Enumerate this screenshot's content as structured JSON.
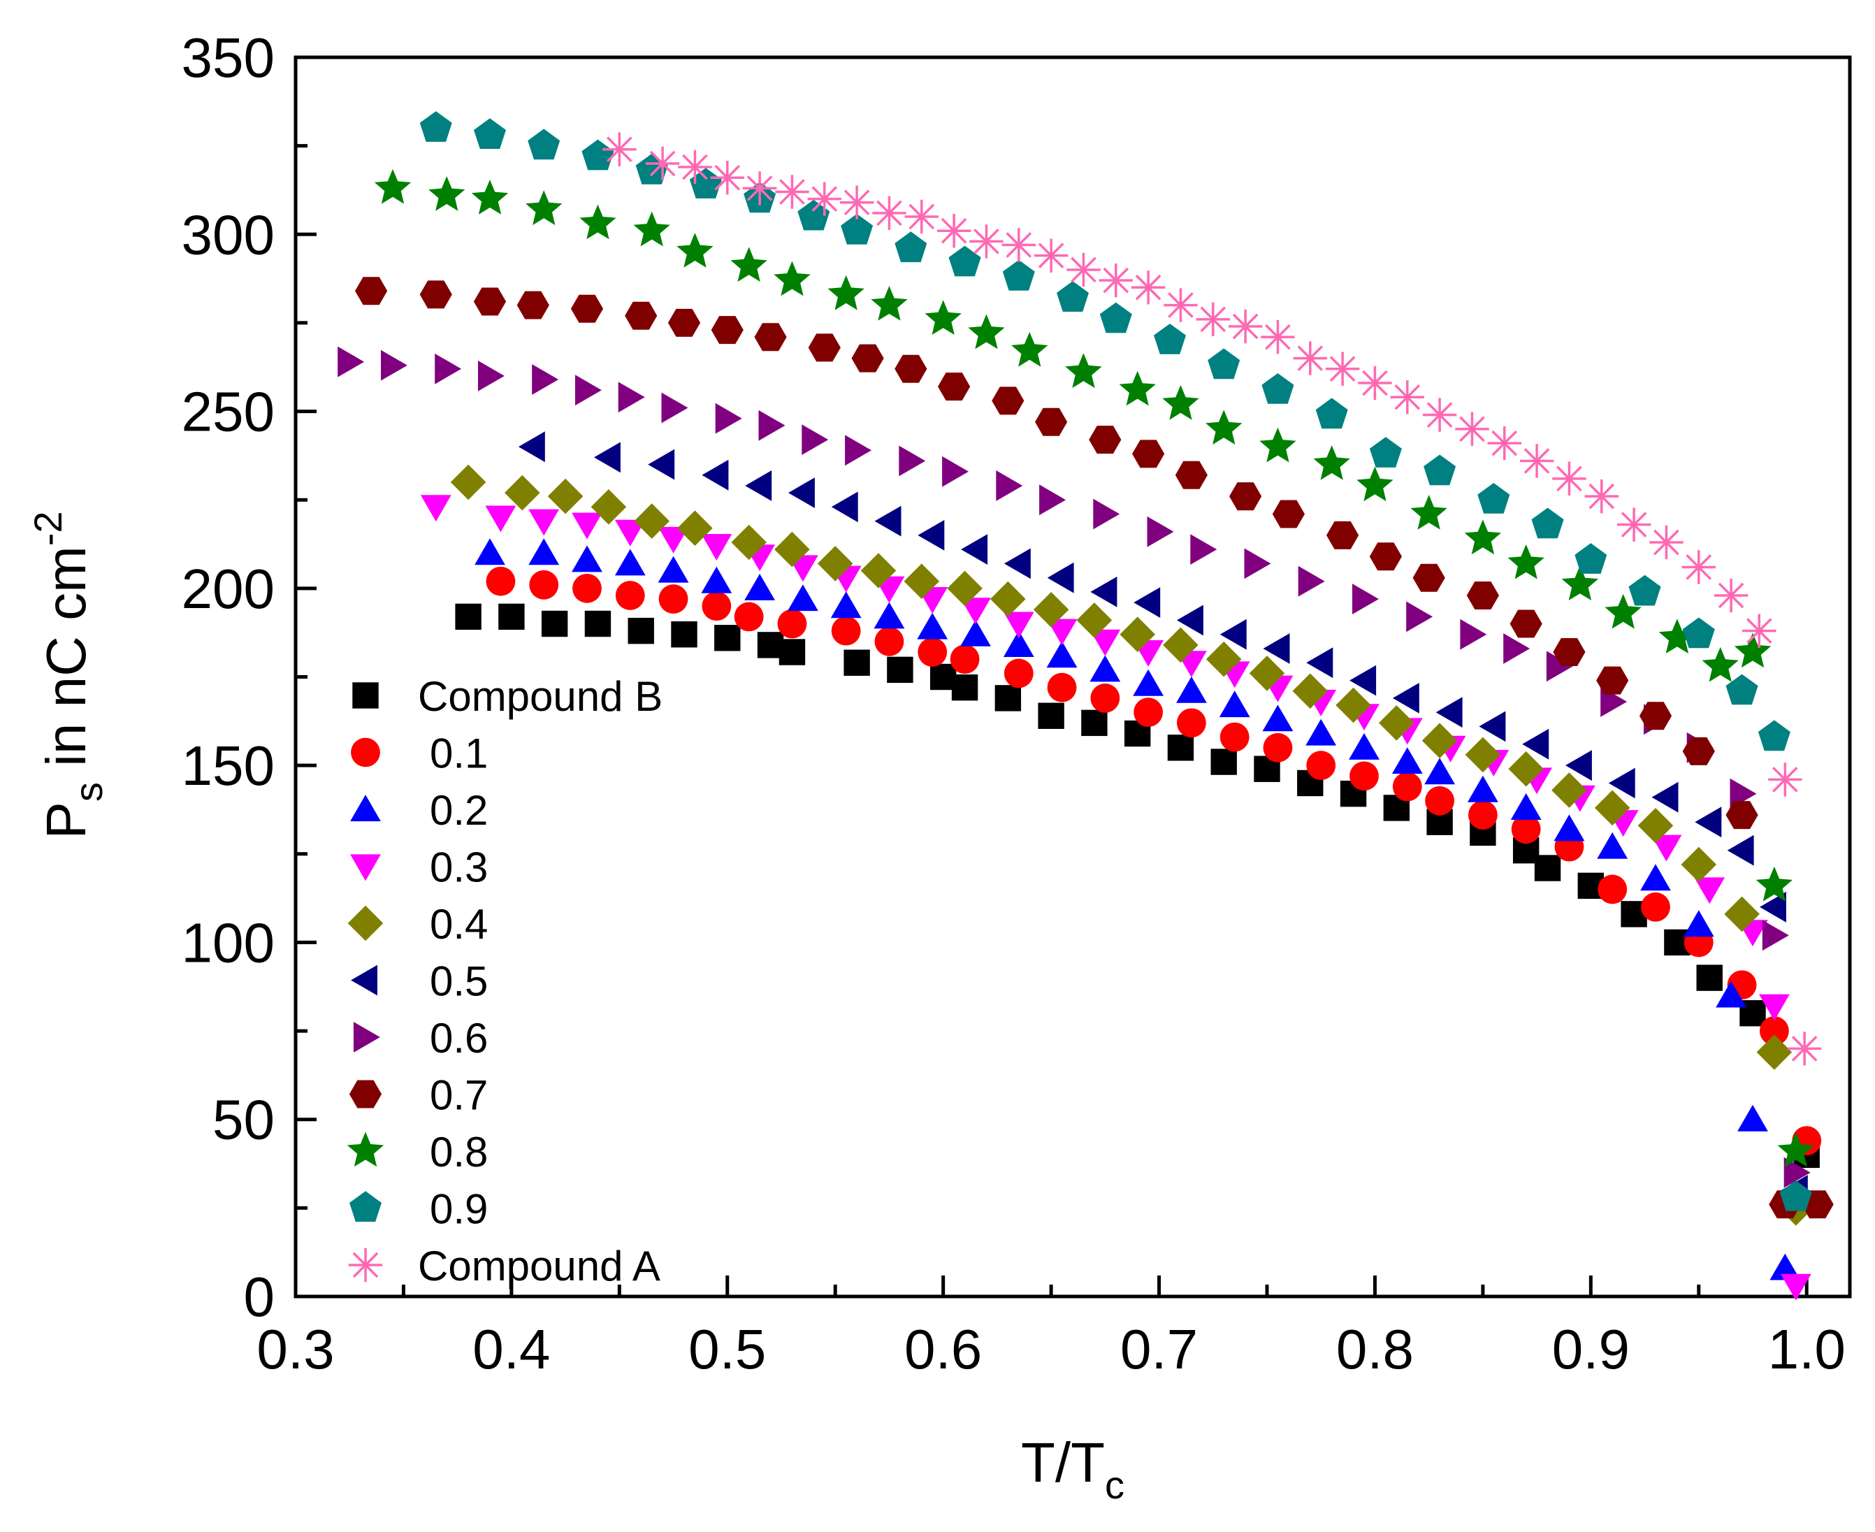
{
  "chart_data": {
    "type": "scatter",
    "title": "",
    "xlabel": {
      "main": "T/T",
      "sub": "c"
    },
    "ylabel": {
      "main": "P",
      "sub": "s",
      "rest": " in nC cm",
      "sup": "-2"
    },
    "xlim": [
      0.3,
      1.02
    ],
    "ylim": [
      0,
      350
    ],
    "xticks": [
      0.3,
      0.4,
      0.5,
      0.6,
      0.7,
      0.8,
      0.9,
      1.0
    ],
    "xtick_labels": [
      "0.3",
      "0.4",
      "0.5",
      "0.6",
      "0.7",
      "0.8",
      "0.9",
      "1.0"
    ],
    "yticks": [
      0,
      50,
      100,
      150,
      200,
      250,
      300,
      350
    ],
    "ytick_labels": [
      "0",
      "50",
      "100",
      "150",
      "200",
      "250",
      "300",
      "350"
    ],
    "grid": false,
    "legend_position": "lower-left",
    "series": [
      {
        "name": "Compound B",
        "marker": "square",
        "color": "#000000",
        "x": [
          0.38,
          0.4,
          0.42,
          0.44,
          0.46,
          0.48,
          0.5,
          0.52,
          0.53,
          0.56,
          0.58,
          0.6,
          0.61,
          0.63,
          0.65,
          0.67,
          0.69,
          0.71,
          0.73,
          0.75,
          0.77,
          0.79,
          0.81,
          0.83,
          0.85,
          0.87,
          0.88,
          0.9,
          0.92,
          0.94,
          0.955,
          0.975,
          1.0
        ],
        "y": [
          192,
          192,
          190,
          190,
          188,
          187,
          186,
          184,
          182,
          179,
          177,
          175,
          172,
          169,
          164,
          162,
          159,
          155,
          151,
          149,
          145,
          142,
          138,
          134,
          131,
          126,
          121,
          116,
          108,
          100,
          90,
          80,
          40
        ]
      },
      {
        "name": "0.1",
        "marker": "circle",
        "color": "#ff0000",
        "x": [
          0.395,
          0.415,
          0.435,
          0.455,
          0.475,
          0.495,
          0.51,
          0.53,
          0.555,
          0.575,
          0.595,
          0.61,
          0.635,
          0.655,
          0.675,
          0.695,
          0.715,
          0.735,
          0.755,
          0.775,
          0.795,
          0.815,
          0.83,
          0.85,
          0.87,
          0.89,
          0.91,
          0.93,
          0.95,
          0.97,
          0.985,
          1.0
        ],
        "y": [
          202,
          201,
          200,
          198,
          197,
          195,
          192,
          190,
          188,
          185,
          182,
          180,
          176,
          172,
          169,
          165,
          162,
          158,
          155,
          150,
          147,
          144,
          140,
          136,
          132,
          127,
          115,
          110,
          100,
          88,
          75,
          44
        ]
      },
      {
        "name": "0.2",
        "marker": "triangle-up",
        "color": "#0000ff",
        "x": [
          0.39,
          0.415,
          0.435,
          0.455,
          0.475,
          0.495,
          0.515,
          0.535,
          0.555,
          0.575,
          0.595,
          0.615,
          0.635,
          0.655,
          0.675,
          0.695,
          0.715,
          0.735,
          0.755,
          0.775,
          0.795,
          0.815,
          0.83,
          0.85,
          0.87,
          0.89,
          0.91,
          0.93,
          0.95,
          0.965,
          0.975,
          0.99
        ],
        "y": [
          210,
          210,
          208,
          207,
          205,
          202,
          200,
          197,
          195,
          192,
          189,
          187,
          184,
          181,
          177,
          173,
          171,
          167,
          163,
          159,
          155,
          151,
          148,
          143,
          138,
          132,
          127,
          118,
          105,
          85,
          50,
          8
        ]
      },
      {
        "name": "0.3",
        "marker": "triangle-down",
        "color": "#ff00ff",
        "x": [
          0.365,
          0.395,
          0.415,
          0.435,
          0.455,
          0.475,
          0.495,
          0.515,
          0.535,
          0.555,
          0.575,
          0.595,
          0.615,
          0.635,
          0.655,
          0.675,
          0.695,
          0.715,
          0.735,
          0.755,
          0.775,
          0.795,
          0.815,
          0.835,
          0.855,
          0.875,
          0.895,
          0.915,
          0.935,
          0.955,
          0.975,
          0.985,
          0.995
        ],
        "y": [
          223,
          220,
          219,
          218,
          216,
          214,
          212,
          209,
          206,
          203,
          200,
          197,
          194,
          190,
          188,
          185,
          182,
          179,
          176,
          172,
          168,
          164,
          160,
          155,
          151,
          146,
          141,
          134,
          127,
          115,
          103,
          82,
          3
        ]
      },
      {
        "name": "0.4",
        "marker": "diamond",
        "color": "#808000",
        "x": [
          0.38,
          0.405,
          0.425,
          0.445,
          0.465,
          0.485,
          0.51,
          0.53,
          0.55,
          0.57,
          0.59,
          0.61,
          0.63,
          0.65,
          0.67,
          0.69,
          0.71,
          0.73,
          0.75,
          0.77,
          0.79,
          0.81,
          0.83,
          0.85,
          0.87,
          0.89,
          0.91,
          0.93,
          0.95,
          0.97,
          0.985,
          0.995
        ],
        "y": [
          230,
          227,
          226,
          223,
          219,
          217,
          213,
          211,
          207,
          205,
          202,
          200,
          197,
          194,
          191,
          187,
          184,
          180,
          176,
          171,
          167,
          162,
          157,
          153,
          149,
          143,
          138,
          133,
          122,
          108,
          69,
          25
        ]
      },
      {
        "name": "0.5",
        "marker": "triangle-left",
        "color": "#000080",
        "x": [
          0.41,
          0.445,
          0.47,
          0.495,
          0.515,
          0.535,
          0.555,
          0.575,
          0.595,
          0.615,
          0.635,
          0.655,
          0.675,
          0.695,
          0.715,
          0.735,
          0.755,
          0.775,
          0.795,
          0.815,
          0.835,
          0.855,
          0.875,
          0.895,
          0.915,
          0.935,
          0.955,
          0.97,
          0.985,
          0.995
        ],
        "y": [
          240,
          237,
          235,
          232,
          229,
          227,
          223,
          219,
          215,
          211,
          207,
          203,
          199,
          196,
          191,
          187,
          183,
          179,
          174,
          169,
          165,
          161,
          156,
          150,
          145,
          141,
          134,
          126,
          110,
          30
        ]
      },
      {
        "name": "0.6",
        "marker": "triangle-right",
        "color": "#800080",
        "x": [
          0.325,
          0.345,
          0.37,
          0.39,
          0.415,
          0.435,
          0.455,
          0.475,
          0.5,
          0.52,
          0.54,
          0.56,
          0.585,
          0.605,
          0.63,
          0.65,
          0.675,
          0.7,
          0.72,
          0.745,
          0.77,
          0.795,
          0.82,
          0.845,
          0.865,
          0.885,
          0.91,
          0.93,
          0.95,
          0.97,
          0.985,
          0.995
        ],
        "y": [
          264,
          263,
          262,
          260,
          259,
          256,
          254,
          251,
          248,
          246,
          242,
          239,
          236,
          233,
          229,
          225,
          221,
          216,
          211,
          207,
          202,
          197,
          192,
          187,
          183,
          178,
          168,
          163,
          155,
          142,
          102,
          35
        ]
      },
      {
        "name": "0.7",
        "marker": "hexagon",
        "color": "#800000",
        "x": [
          0.335,
          0.365,
          0.39,
          0.41,
          0.435,
          0.46,
          0.48,
          0.5,
          0.52,
          0.545,
          0.565,
          0.585,
          0.605,
          0.63,
          0.65,
          0.675,
          0.695,
          0.715,
          0.74,
          0.76,
          0.785,
          0.805,
          0.825,
          0.85,
          0.87,
          0.89,
          0.91,
          0.93,
          0.95,
          0.97,
          0.99,
          1.005
        ],
        "y": [
          284,
          283,
          281,
          280,
          279,
          277,
          275,
          273,
          271,
          268,
          265,
          262,
          257,
          253,
          247,
          242,
          238,
          232,
          226,
          221,
          215,
          209,
          203,
          198,
          190,
          182,
          174,
          164,
          154,
          136,
          26,
          26
        ]
      },
      {
        "name": "0.8",
        "marker": "star",
        "color": "#008000",
        "x": [
          0.345,
          0.37,
          0.39,
          0.415,
          0.44,
          0.465,
          0.485,
          0.51,
          0.53,
          0.555,
          0.575,
          0.6,
          0.62,
          0.64,
          0.665,
          0.69,
          0.71,
          0.73,
          0.755,
          0.78,
          0.8,
          0.825,
          0.85,
          0.87,
          0.895,
          0.915,
          0.94,
          0.96,
          0.975,
          0.985,
          0.995
        ],
        "y": [
          313,
          311,
          310,
          307,
          303,
          301,
          295,
          291,
          287,
          283,
          280,
          276,
          272,
          267,
          261,
          256,
          252,
          245,
          240,
          235,
          229,
          221,
          214,
          207,
          201,
          193,
          186,
          178,
          182,
          116,
          41
        ]
      },
      {
        "name": "0.9",
        "marker": "pentagon",
        "color": "#008080",
        "x": [
          0.365,
          0.39,
          0.415,
          0.44,
          0.465,
          0.49,
          0.515,
          0.54,
          0.56,
          0.585,
          0.61,
          0.635,
          0.66,
          0.68,
          0.705,
          0.73,
          0.755,
          0.78,
          0.805,
          0.83,
          0.855,
          0.88,
          0.9,
          0.925,
          0.95,
          0.97,
          0.985,
          0.995
        ],
        "y": [
          330,
          328,
          325,
          322,
          318,
          314,
          310,
          305,
          301,
          296,
          292,
          288,
          282,
          276,
          270,
          263,
          256,
          249,
          238,
          233,
          225,
          218,
          208,
          199,
          187,
          171,
          158,
          28
        ]
      },
      {
        "name": "Compound A",
        "marker": "asterisk",
        "color": "#ff69b4",
        "x": [
          0.45,
          0.47,
          0.485,
          0.5,
          0.515,
          0.53,
          0.545,
          0.56,
          0.575,
          0.59,
          0.605,
          0.62,
          0.635,
          0.65,
          0.665,
          0.68,
          0.695,
          0.71,
          0.725,
          0.74,
          0.755,
          0.77,
          0.785,
          0.8,
          0.815,
          0.83,
          0.845,
          0.86,
          0.875,
          0.89,
          0.905,
          0.92,
          0.935,
          0.95,
          0.965,
          0.978,
          0.99,
          0.999
        ],
        "y": [
          324,
          320,
          319,
          316,
          313,
          312,
          310,
          309,
          306,
          305,
          301,
          298,
          297,
          294,
          290,
          287,
          285,
          280,
          276,
          274,
          271,
          265,
          262,
          258,
          254,
          249,
          245,
          241,
          236,
          231,
          226,
          218,
          213,
          206,
          198,
          188,
          146,
          70
        ]
      }
    ]
  }
}
